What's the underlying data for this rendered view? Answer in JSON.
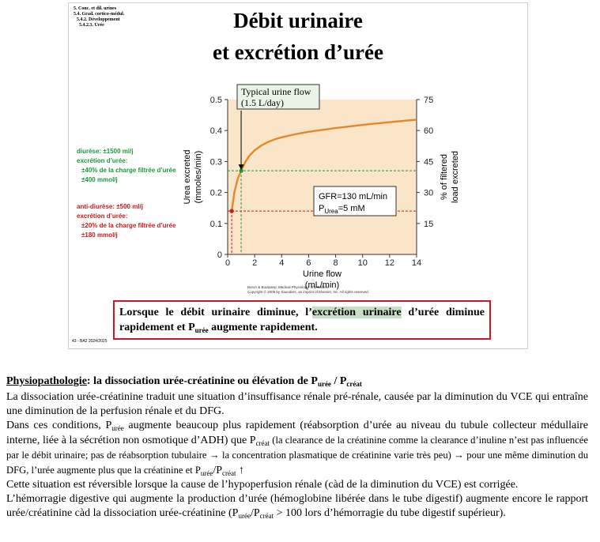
{
  "slide": {
    "breadcrumb": [
      "5. Conc. et dil. urines",
      "5.4. Grad. cortico-médul.",
      "5.4.2. Développement",
      "5.4.2.3. Urée"
    ],
    "title_line1": "Débit urinaire",
    "title_line2": "et excrétion d’urée",
    "green_note": [
      "diurèse: ±1500 ml/j",
      "excrétion d’urée:",
      "±40% de la charge filtrée d’urée",
      "±400 mmol/j"
    ],
    "red_note": [
      "anti-diurèse: ±500 ml/j",
      "excrétion d’urée:",
      "±20% de la charge filtrée d’urée",
      "±180 mmol/j"
    ],
    "credit_lines": [
      "Boron & Boulpaep: Medical Physiology, 2nd Edition.",
      "Copyright © 2009 by Saunders, an imprint of Elsevier, Inc. All rights reserved."
    ],
    "callout_a": "Lorsque le débit urinaire diminue, l’",
    "callout_hl": "excrétion urinaire",
    "callout_b": " d’urée diminue rapidement et P",
    "callout_sub": "urée",
    "callout_c": " augmente rapidement.",
    "footer": "43 - BA2 2024/2025"
  },
  "chart_data": {
    "type": "line",
    "xlabel": "Urine flow",
    "xlabel_unit": "(mL/min)",
    "ylabel": "Urea excreted",
    "ylabel_unit": "(mmoles/min)",
    "y2label": "% of filtered",
    "y2label_2": "load excreted",
    "xlim": [
      0,
      14
    ],
    "ylim": [
      0,
      0.5
    ],
    "y2lim": [
      0,
      75
    ],
    "x_ticks": [
      0,
      2,
      4,
      6,
      8,
      10,
      12,
      14
    ],
    "y_ticks": [
      "0",
      "0.1",
      "0.2",
      "0.3",
      "0.4",
      "0.5"
    ],
    "y2_ticks": [
      15,
      30,
      45,
      60,
      75
    ],
    "series": [
      {
        "x": [
          0.3,
          0.5,
          0.75,
          1.0,
          1.3,
          1.6,
          2.0,
          2.5,
          3.0,
          3.5,
          4.0,
          5.0,
          6.0,
          7.0,
          8.0,
          10.0,
          12.0,
          14.0
        ],
        "y": [
          0.14,
          0.2,
          0.245,
          0.27,
          0.298,
          0.318,
          0.336,
          0.352,
          0.363,
          0.372,
          0.378,
          0.388,
          0.396,
          0.402,
          0.408,
          0.418,
          0.427,
          0.435
        ]
      }
    ],
    "markers": [
      {
        "x": 1.0,
        "y": 0.27,
        "color": "#1a9a3a"
      },
      {
        "x": 0.3,
        "y": 0.14,
        "color": "#d01818"
      }
    ],
    "annotation_line1": "Typical urine flow",
    "annotation_line2": "(1.5 L/day)",
    "info_line1": "GFR=130 mL/min",
    "info_p": "P",
    "info_sub": "Urea",
    "info_rest": "=5 mM",
    "colors": {
      "curve": "#e3892a",
      "plot_bg": "#fae5c8",
      "green": "#1a9a3a",
      "red": "#d01818"
    }
  },
  "doc": {
    "heading_u": "Physiopathologie",
    "heading_rest": ": la dissociation urée-créatinine ou élévation de P",
    "heading_sub1": "urée",
    "heading_mid": " / P",
    "heading_sub2": "créat",
    "p1": "La dissociation urée-créatinine traduit une situation d’insuffisance rénale pré-rénale, causée par la diminution du VCE qui entraîne une diminution de la perfusion rénale et du DFG.",
    "p2a": "Dans ces conditions, P",
    "p2a_sub": "urée",
    "p2b": " augmente beaucoup plus rapidement (réabsorption d’urée au niveau du tubule collecteur médullaire interne, liée à la sécrétion non osmotique d’ADH) que P",
    "p2b_sub": "créat",
    "p2c": " (la clearance de la créatinine comme la clearance d’inuline n’est pas influencée par le débit urinaire; pas de réabsorption tubulaire → la concentration plasmatique de créatinine varie très peu) → pour une même diminution du DFG, l’urée augmente plus que la créatinine et P",
    "p2c_sub1": "urée",
    "p2c_slash": "/P",
    "p2c_sub2": "créat",
    "p2c_end": " ↑",
    "p3": "Cette situation est réversible lorsque la cause de l’hypoperfusion rénale (càd de la diminution du VCE) est corrigée.",
    "p4a": "L’hémorragie digestive qui augmente la production d’urée (hémoglobine libérée dans le tube digestif) augmente encore le rapport urée/créatinine càd la dissociation urée-créatinine (P",
    "p4_sub1": "urée",
    "p4_slash": "/P",
    "p4_sub2": "créat",
    "p4b": " > 100 lors d’hémorragie du tube digestif supérieur)."
  }
}
